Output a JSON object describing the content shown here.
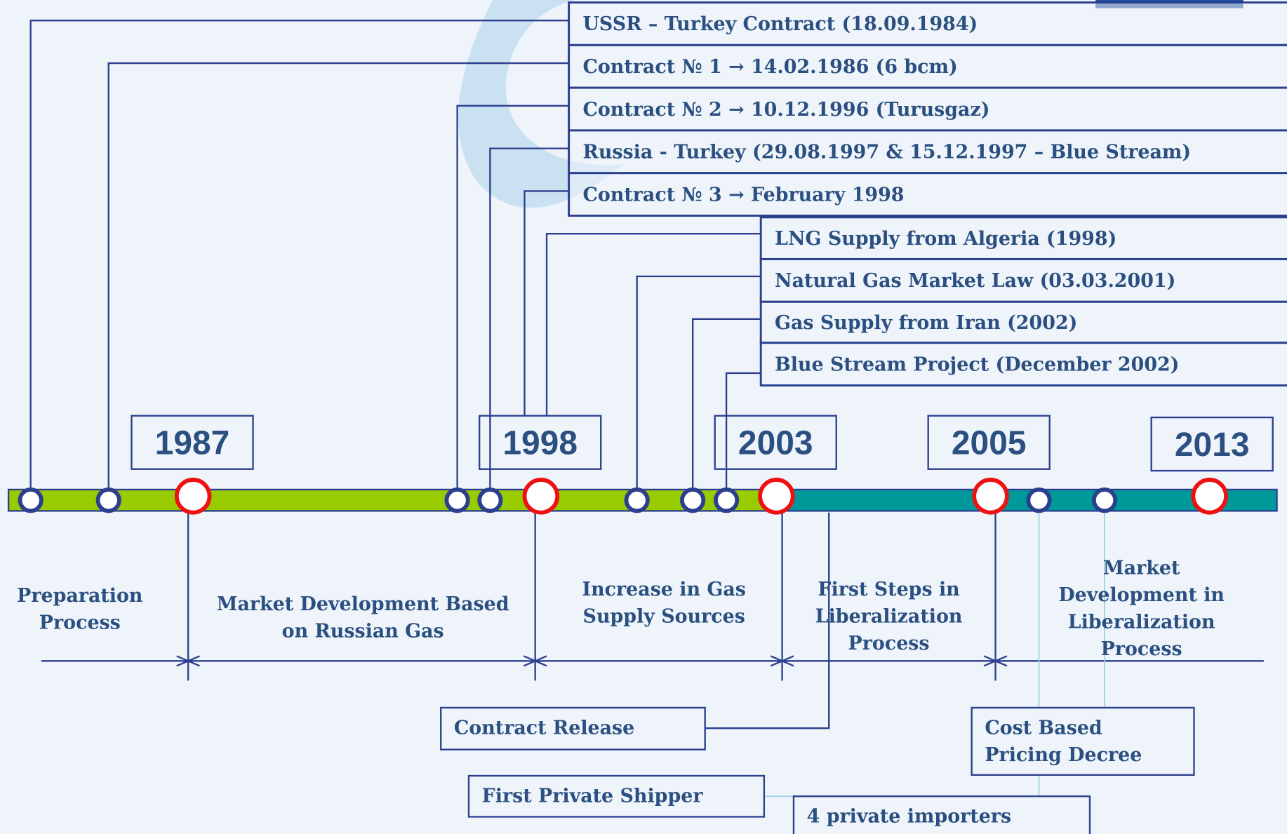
{
  "top_events": [
    "USSR – Turkey Contract (18.09.1984)",
    "Contract № 1 → 14.02.1986 (6 bcm)",
    "Contract № 2 → 10.12.1996 (Turusgaz)",
    "Russia - Turkey (29.08.1997 & 15.12.1997 – Blue Stream)",
    "Contract № 3 → February 1998",
    "LNG Supply  from Algeria (1998)",
    "Natural Gas Market Law (03.03.2001)",
    "Gas Supply from Iran (2002)",
    "Blue Stream Project (December 2002)"
  ],
  "years": [
    "1987",
    "1998",
    "2003",
    "2005",
    "2013"
  ],
  "phases": [
    {
      "lines": [
        "Preparation",
        "Process"
      ]
    },
    {
      "lines": [
        "Market Development Based",
        "on Russian Gas"
      ]
    },
    {
      "lines": [
        "Increase in Gas",
        "Supply Sources"
      ]
    },
    {
      "lines": [
        "First Steps in",
        "Liberalization",
        "Process"
      ]
    },
    {
      "lines": [
        "Market",
        "Development in",
        "Liberalization",
        "Process"
      ]
    }
  ],
  "bottom_events": [
    {
      "lines": [
        "Contract Release"
      ]
    },
    {
      "lines": [
        "First Private Shipper"
      ]
    },
    {
      "lines": [
        "4 private importers"
      ]
    },
    {
      "lines": [
        "Cost Based",
        "Pricing Decree"
      ]
    }
  ]
}
